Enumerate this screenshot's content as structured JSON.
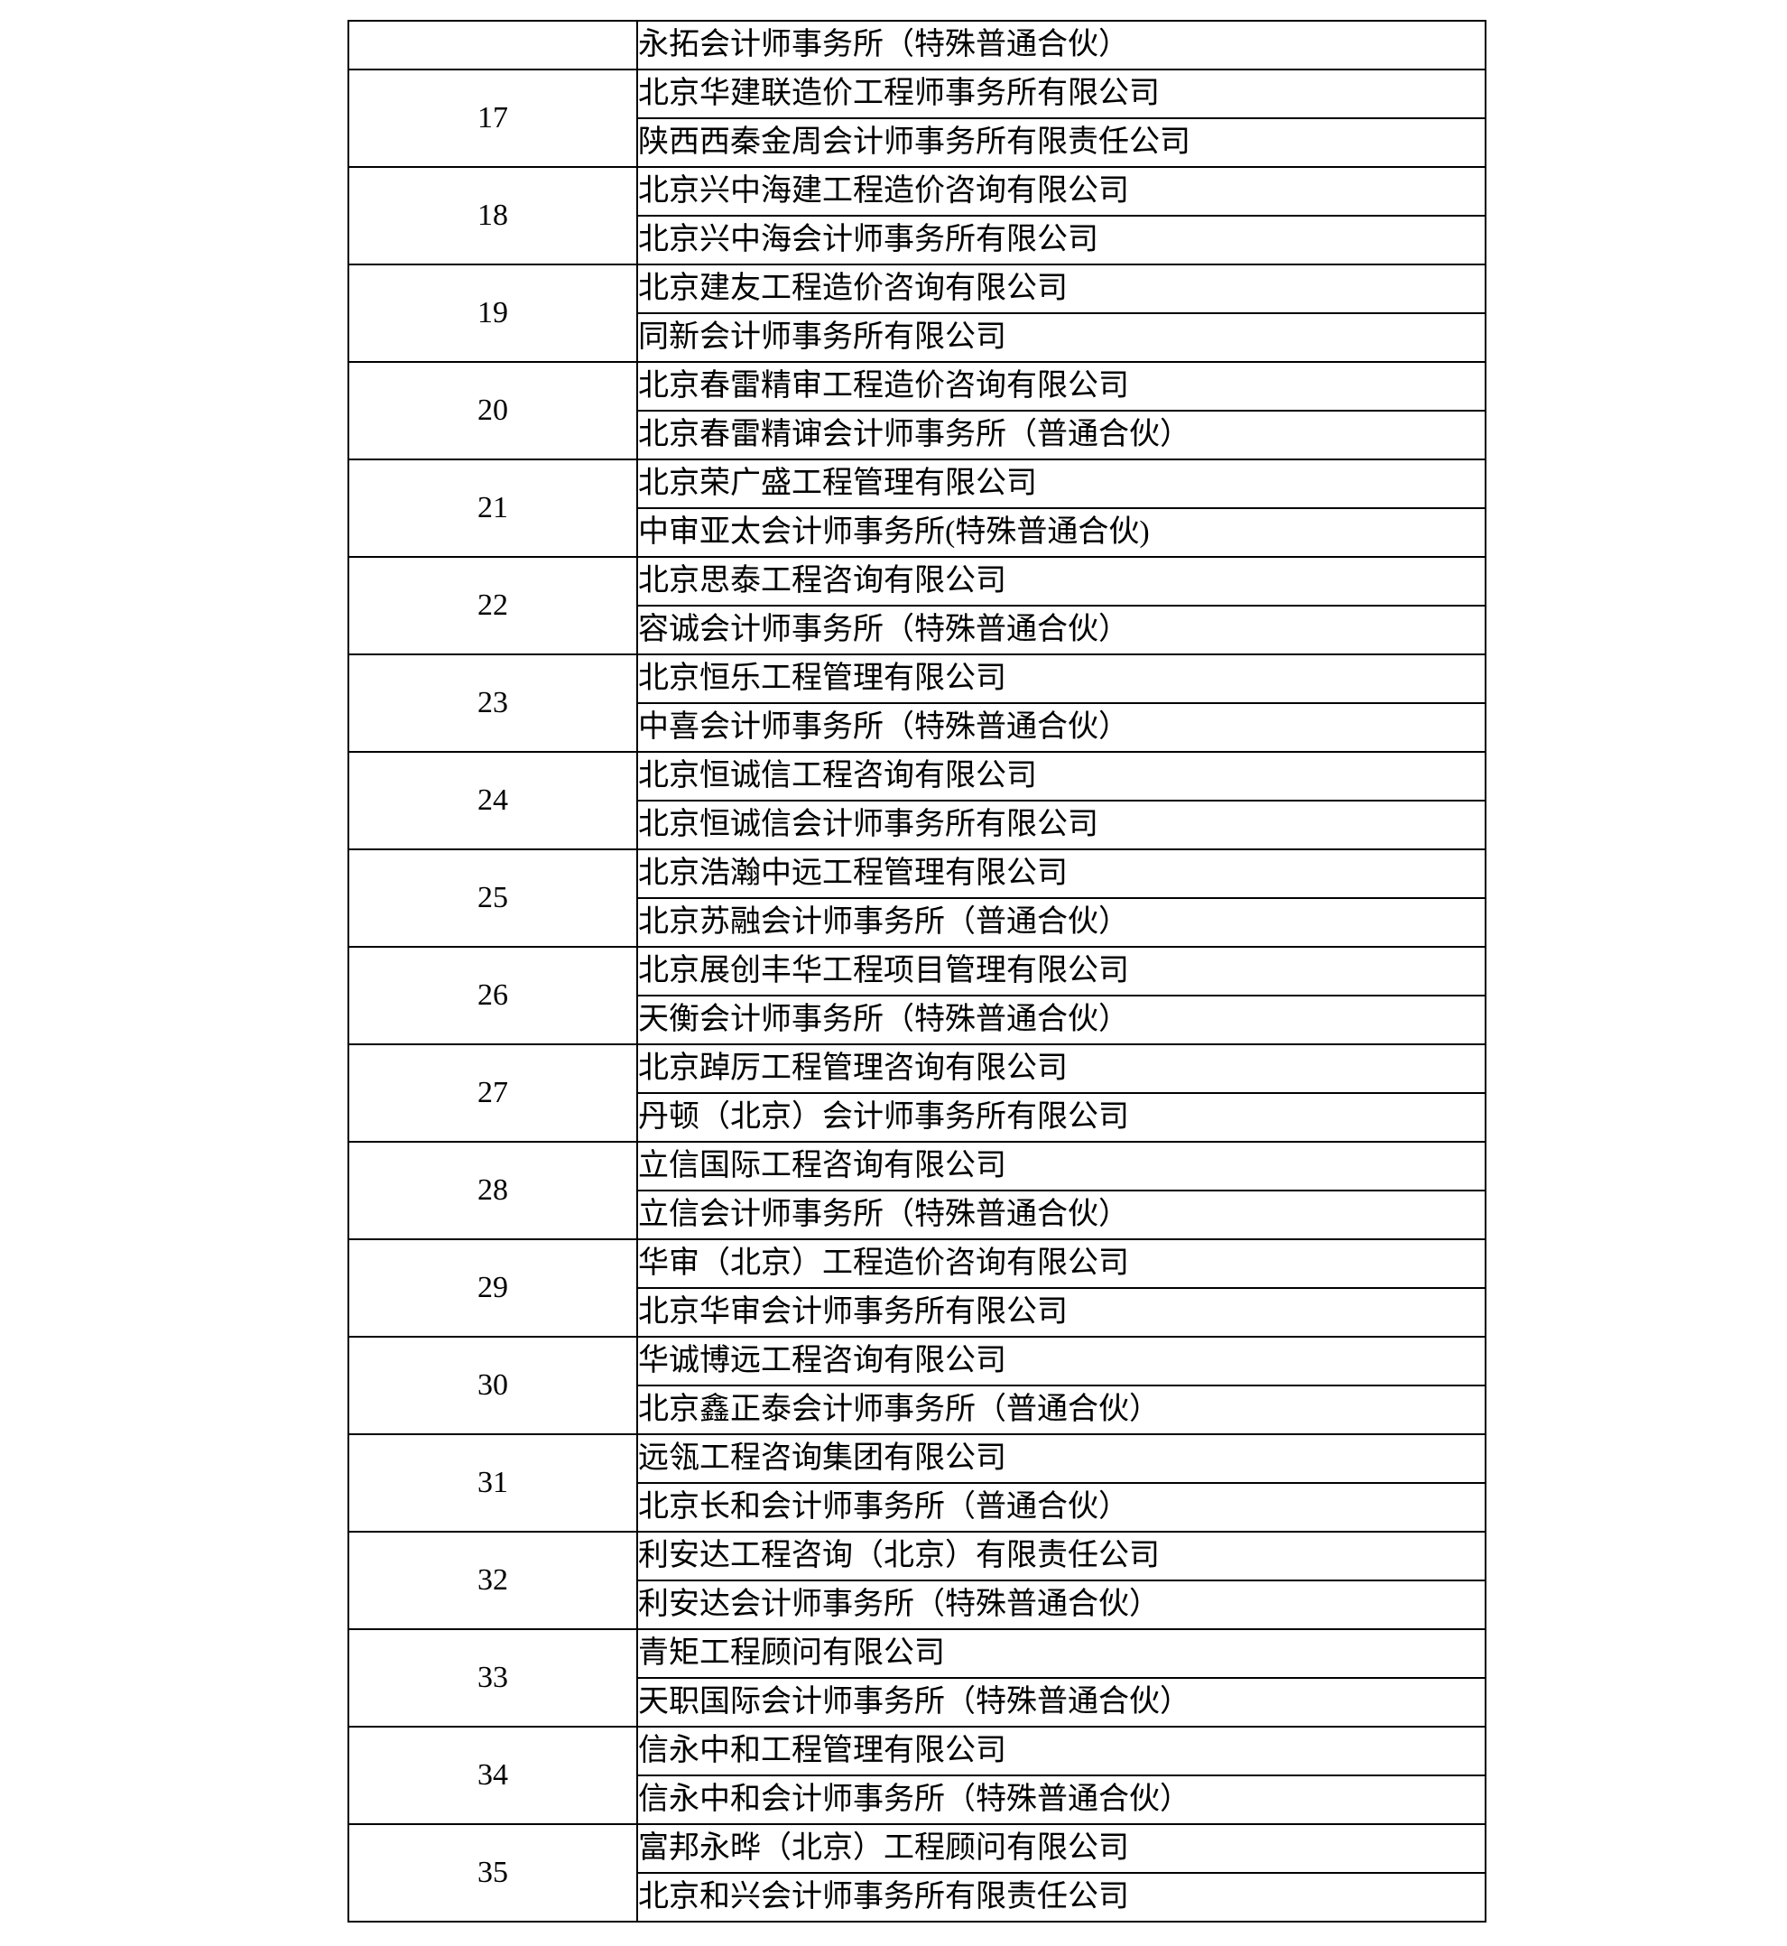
{
  "document": {
    "table": {
      "continuation_row": {
        "number": "",
        "firm": "永拓会计师事务所（特殊普通合伙）"
      },
      "groups": [
        {
          "number": "17",
          "firms": [
            "北京华建联造价工程师事务所有限公司",
            "陕西西秦金周会计师事务所有限责任公司"
          ]
        },
        {
          "number": "18",
          "firms": [
            "北京兴中海建工程造价咨询有限公司",
            "北京兴中海会计师事务所有限公司"
          ]
        },
        {
          "number": "19",
          "firms": [
            "北京建友工程造价咨询有限公司",
            "同新会计师事务所有限公司"
          ]
        },
        {
          "number": "20",
          "firms": [
            "北京春雷精审工程造价咨询有限公司",
            "北京春雷精谉会计师事务所（普通合伙）"
          ]
        },
        {
          "number": "21",
          "firms": [
            "北京荣广盛工程管理有限公司",
            "中审亚太会计师事务所(特殊普通合伙)"
          ]
        },
        {
          "number": "22",
          "firms": [
            "北京思泰工程咨询有限公司",
            "容诚会计师事务所（特殊普通合伙）"
          ]
        },
        {
          "number": "23",
          "firms": [
            "北京恒乐工程管理有限公司",
            "中喜会计师事务所（特殊普通合伙）"
          ]
        },
        {
          "number": "24",
          "firms": [
            "北京恒诚信工程咨询有限公司",
            "北京恒诚信会计师事务所有限公司"
          ]
        },
        {
          "number": "25",
          "firms": [
            "北京浩瀚中远工程管理有限公司",
            "北京苏融会计师事务所（普通合伙）"
          ]
        },
        {
          "number": "26",
          "firms": [
            "北京展创丰华工程项目管理有限公司",
            "天衡会计师事务所（特殊普通合伙）"
          ]
        },
        {
          "number": "27",
          "firms": [
            "北京踔厉工程管理咨询有限公司",
            "丹顿（北京）会计师事务所有限公司"
          ]
        },
        {
          "number": "28",
          "firms": [
            "立信国际工程咨询有限公司",
            "立信会计师事务所（特殊普通合伙）"
          ]
        },
        {
          "number": "29",
          "firms": [
            "华审（北京）工程造价咨询有限公司",
            "北京华审会计师事务所有限公司"
          ]
        },
        {
          "number": "30",
          "firms": [
            "华诚博远工程咨询有限公司",
            "北京鑫正泰会计师事务所（普通合伙）"
          ]
        },
        {
          "number": "31",
          "firms": [
            "远瓴工程咨询集团有限公司",
            "北京长和会计师事务所（普通合伙）"
          ]
        },
        {
          "number": "32",
          "firms": [
            "利安达工程咨询（北京）有限责任公司",
            "利安达会计师事务所（特殊普通合伙）"
          ]
        },
        {
          "number": "33",
          "firms": [
            "青矩工程顾问有限公司",
            "天职国际会计师事务所（特殊普通合伙）"
          ]
        },
        {
          "number": "34",
          "firms": [
            "信永中和工程管理有限公司",
            "信永中和会计师事务所（特殊普通合伙）"
          ]
        },
        {
          "number": "35",
          "firms": [
            "富邦永晔（北京）工程顾问有限公司",
            "北京和兴会计师事务所有限责任公司"
          ]
        }
      ]
    }
  }
}
